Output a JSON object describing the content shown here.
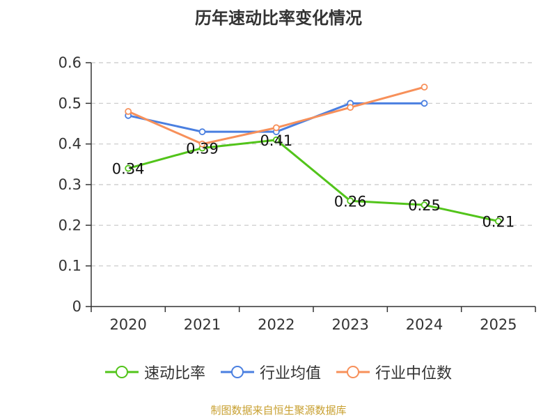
{
  "chart_data": {
    "type": "line",
    "title": "历年速动比率变化情况",
    "categories": [
      "2020",
      "2021",
      "2022",
      "2023",
      "2024",
      "2025"
    ],
    "ylim": [
      0,
      0.6
    ],
    "yticks": [
      "0",
      "0.1",
      "0.2",
      "0.3",
      "0.4",
      "0.5",
      "0.6"
    ],
    "grid": true,
    "legend_position": "bottom",
    "series": [
      {
        "name": "速动比率",
        "color": "#52c41a",
        "values": [
          0.34,
          0.39,
          0.41,
          0.26,
          0.25,
          0.21
        ],
        "labels": [
          "0.34",
          "0.39",
          "0.41",
          "0.26",
          "0.25",
          "0.21"
        ]
      },
      {
        "name": "行业均值",
        "color": "#4a7fe0",
        "values": [
          0.47,
          0.43,
          0.43,
          0.5,
          0.5,
          null
        ]
      },
      {
        "name": "行业中位数",
        "color": "#f7905a",
        "values": [
          0.48,
          0.4,
          0.44,
          0.49,
          0.54,
          null
        ]
      }
    ]
  },
  "source": "制图数据来自恒生聚源数据库"
}
